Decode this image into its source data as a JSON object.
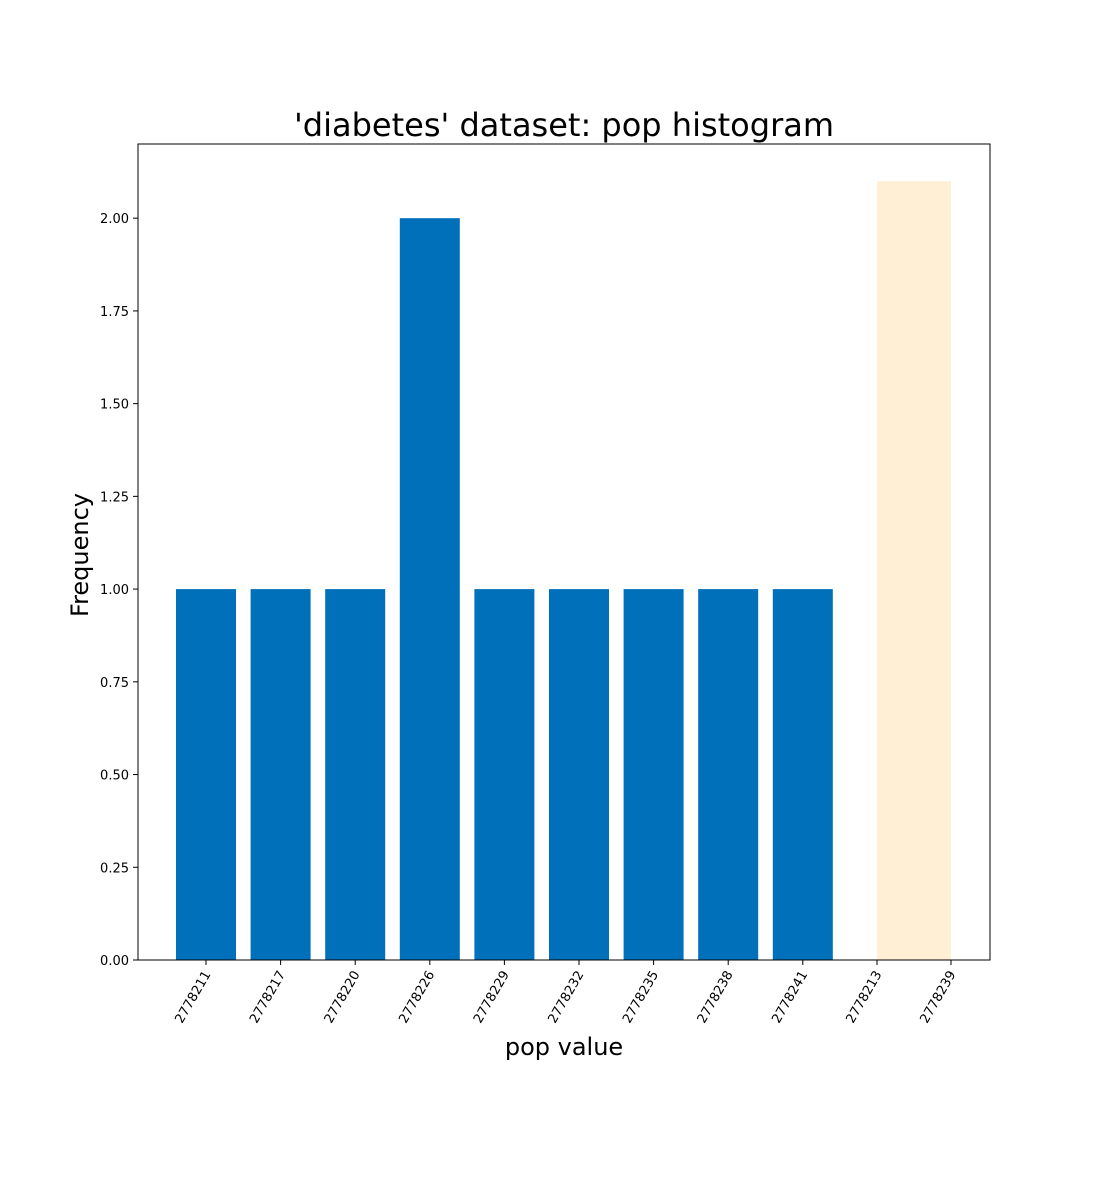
{
  "chart_data": {
    "type": "bar",
    "title": "'diabetes' dataset: pop histogram",
    "xlabel": "pop value",
    "ylabel": "Frequency",
    "ylim": [
      0,
      2.2
    ],
    "yticks": [
      "0.00",
      "0.25",
      "0.50",
      "0.75",
      "1.00",
      "1.25",
      "1.50",
      "1.75",
      "2.00"
    ],
    "grid": false,
    "categories": [
      "2778211",
      "2778217",
      "2778220",
      "2778226",
      "2778229",
      "2778232",
      "2778235",
      "2778238",
      "2778241"
    ],
    "values": [
      1,
      1,
      1,
      2,
      1,
      1,
      1,
      1,
      1
    ],
    "bar_color": "#0070bb",
    "highlight_range": {
      "from": "2778213",
      "to": "2778239",
      "color": "#ffefd5"
    }
  }
}
